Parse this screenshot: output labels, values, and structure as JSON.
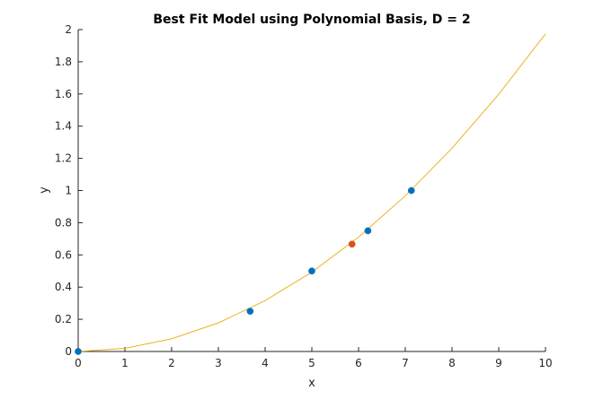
{
  "chart_data": {
    "type": "scatter",
    "title": "Best Fit Model using Polynomial Basis, D = 2",
    "xlabel": "x",
    "ylabel": "y",
    "xlim": [
      0,
      10
    ],
    "ylim": [
      0,
      2
    ],
    "xticks": [
      "0",
      "1",
      "2",
      "3",
      "4",
      "5",
      "6",
      "7",
      "8",
      "9",
      "10"
    ],
    "yticks": [
      "0",
      "0.2",
      "0.4",
      "0.6",
      "0.8",
      "1",
      "1.2",
      "1.4",
      "1.6",
      "1.8",
      "2"
    ],
    "grid": false,
    "legend": "none",
    "series": [
      {
        "kind": "line",
        "color": "#EDB120",
        "points": [
          [
            0,
            0.0
          ],
          [
            1,
            0.0197
          ],
          [
            2,
            0.0789
          ],
          [
            3,
            0.1776
          ],
          [
            4,
            0.3157
          ],
          [
            5,
            0.4933
          ],
          [
            6,
            0.7104
          ],
          [
            7,
            0.9669
          ],
          [
            8,
            1.2629
          ],
          [
            9,
            1.5983
          ],
          [
            10,
            1.9733
          ]
        ]
      },
      {
        "kind": "scatter",
        "color": "#0072BD",
        "points": [
          [
            0,
            0.0
          ],
          [
            3.68,
            0.25
          ],
          [
            5.0,
            0.5
          ],
          [
            6.2,
            0.75
          ],
          [
            7.13,
            1.0
          ]
        ]
      },
      {
        "kind": "scatter",
        "color": "#D95319",
        "points": [
          [
            5.86,
            0.667
          ]
        ]
      }
    ]
  }
}
